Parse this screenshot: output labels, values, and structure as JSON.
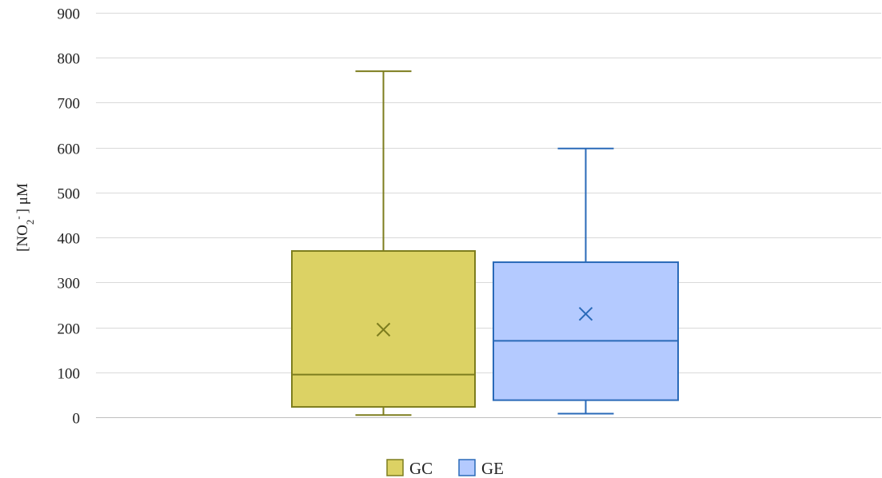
{
  "chart_data": {
    "type": "box",
    "ylabel": {
      "prefix": "[NO",
      "sub": "2",
      "sup": "-",
      "suffix": "] μM"
    },
    "ylim": [
      0,
      900
    ],
    "yticks": [
      0,
      100,
      200,
      300,
      400,
      500,
      600,
      700,
      800,
      900
    ],
    "grid": true,
    "legend_position": "bottom-center",
    "series": [
      {
        "name": "GC",
        "min": 5,
        "q1": 23,
        "median": 95,
        "q3": 370,
        "max": 770,
        "mean": 195,
        "fill": "#dcd264",
        "stroke": "#7d7d1e"
      },
      {
        "name": "GE",
        "min": 8,
        "q1": 38,
        "median": 170,
        "q3": 345,
        "max": 598,
        "mean": 230,
        "fill": "#b4caff",
        "stroke": "#2a6ab8"
      }
    ]
  }
}
